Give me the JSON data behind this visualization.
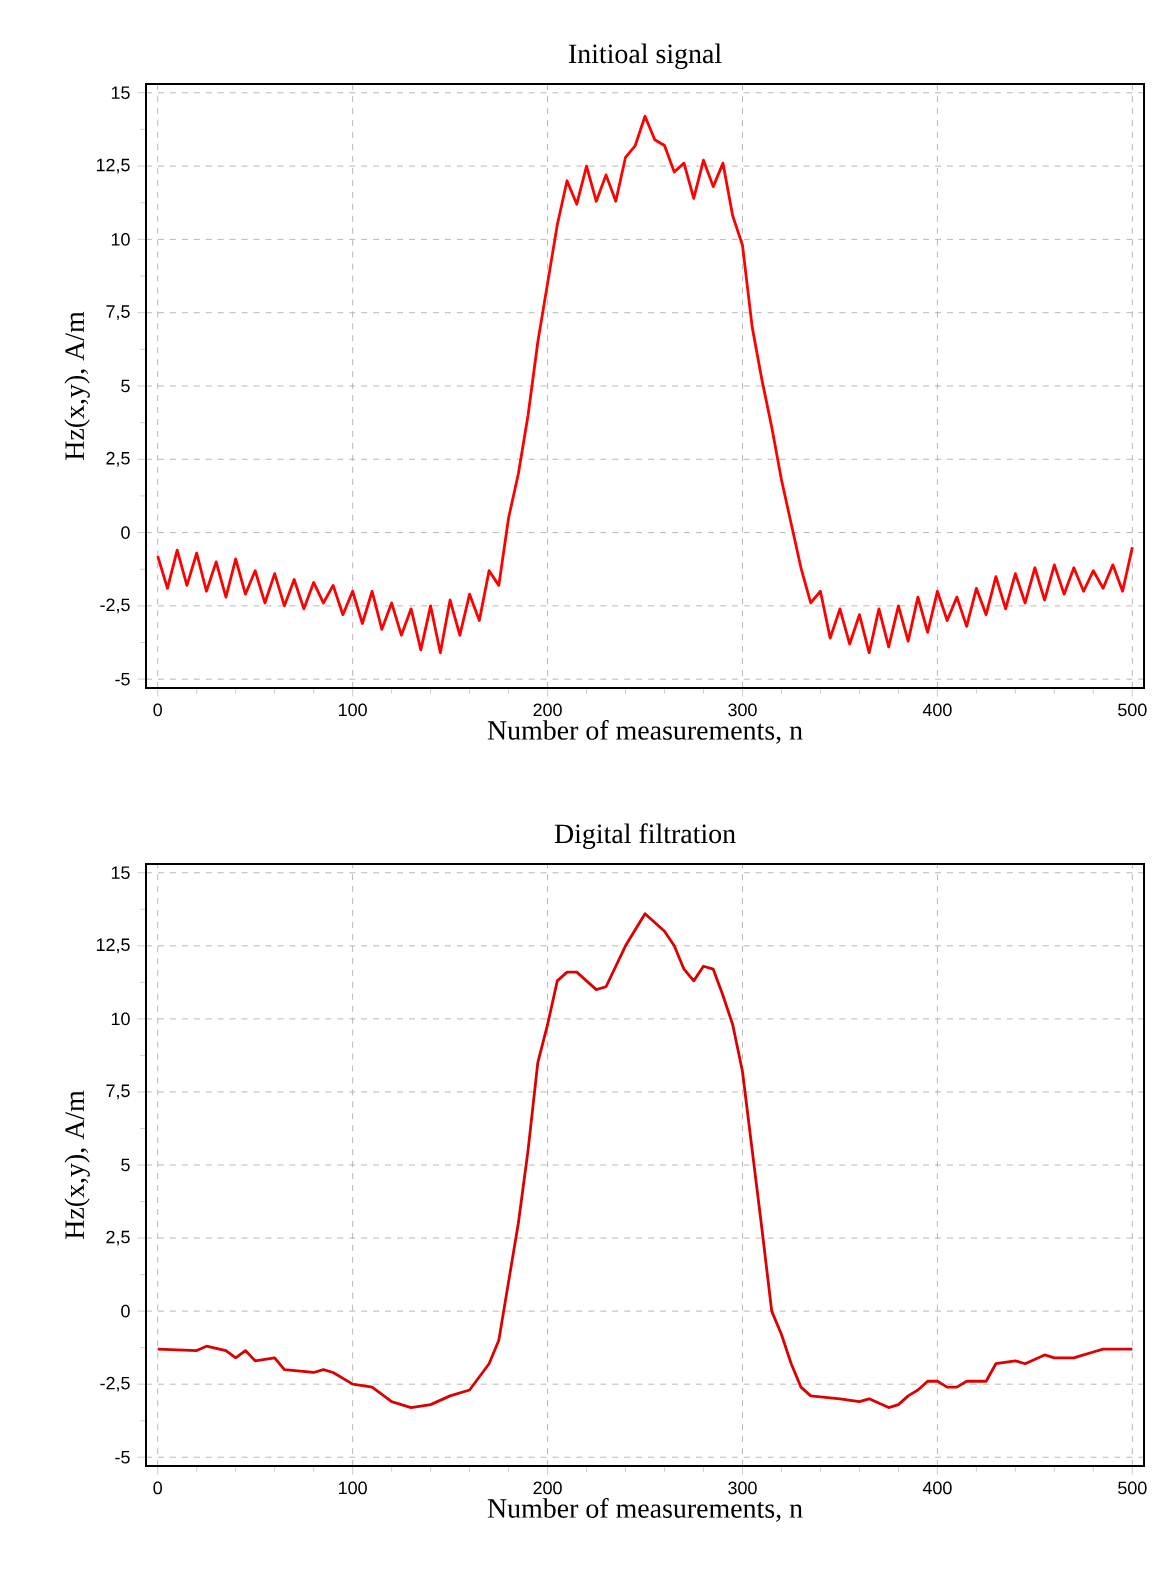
{
  "chart_data": [
    {
      "type": "line",
      "title": "Initioal signal",
      "xlabel": "Number of measurements, n",
      "ylabel": "Hz(x,y), A/m",
      "xlim": [
        -6,
        506
      ],
      "ylim": [
        -5.3,
        15.3
      ],
      "xticks": [
        0,
        100,
        200,
        300,
        400,
        500
      ],
      "yticks": [
        -5,
        {
          "value": -2.5,
          "label": "-2,5"
        },
        0,
        {
          "value": 2.5,
          "label": "2,5"
        },
        5,
        {
          "value": 7.5,
          "label": "7,5"
        },
        10,
        {
          "value": 12.5,
          "label": "12,5"
        },
        15
      ],
      "grid": true,
      "color": "#ff0000",
      "x": [
        0,
        5,
        10,
        15,
        20,
        25,
        30,
        35,
        40,
        45,
        50,
        55,
        60,
        65,
        70,
        75,
        80,
        85,
        90,
        95,
        100,
        105,
        110,
        115,
        120,
        125,
        130,
        135,
        140,
        145,
        150,
        155,
        160,
        165,
        170,
        175,
        180,
        185,
        190,
        195,
        200,
        205,
        210,
        215,
        220,
        225,
        230,
        235,
        240,
        245,
        250,
        255,
        260,
        265,
        270,
        275,
        280,
        285,
        290,
        295,
        300,
        305,
        310,
        315,
        320,
        325,
        330,
        335,
        340,
        345,
        350,
        355,
        360,
        365,
        370,
        375,
        380,
        385,
        390,
        395,
        400,
        405,
        410,
        415,
        420,
        425,
        430,
        435,
        440,
        445,
        450,
        455,
        460,
        465,
        470,
        475,
        480,
        485,
        490,
        495,
        500
      ],
      "values": [
        -0.8,
        -1.9,
        -0.6,
        -1.8,
        -0.7,
        -2.0,
        -1.0,
        -2.2,
        -0.9,
        -2.1,
        -1.3,
        -2.4,
        -1.4,
        -2.5,
        -1.6,
        -2.6,
        -1.7,
        -2.4,
        -1.8,
        -2.8,
        -2.0,
        -3.1,
        -2.0,
        -3.3,
        -2.4,
        -3.5,
        -2.6,
        -4.0,
        -2.5,
        -4.1,
        -2.3,
        -3.5,
        -2.1,
        -3.0,
        -1.3,
        -1.8,
        0.5,
        2.0,
        4.0,
        6.5,
        8.5,
        10.5,
        12.0,
        11.2,
        12.5,
        11.3,
        12.2,
        11.3,
        12.8,
        13.2,
        14.2,
        13.4,
        13.2,
        12.3,
        12.6,
        11.4,
        12.7,
        11.8,
        12.6,
        10.8,
        9.8,
        7.0,
        5.2,
        3.6,
        1.8,
        0.3,
        -1.2,
        -2.4,
        -2.0,
        -3.6,
        -2.6,
        -3.8,
        -2.8,
        -4.1,
        -2.6,
        -3.9,
        -2.5,
        -3.7,
        -2.2,
        -3.4,
        -2.0,
        -3.0,
        -2.2,
        -3.2,
        -1.9,
        -2.8,
        -1.5,
        -2.6,
        -1.4,
        -2.4,
        -1.2,
        -2.3,
        -1.1,
        -2.1,
        -1.2,
        -2.0,
        -1.3,
        -1.9,
        -1.1,
        -2.0,
        -0.5
      ]
    },
    {
      "type": "line",
      "title": "Digital filtration",
      "xlabel": "Number of measurements, n",
      "ylabel": "Hz(x,y), A/m",
      "xlim": [
        -6,
        506
      ],
      "ylim": [
        -5.3,
        15.3
      ],
      "xticks": [
        0,
        100,
        200,
        300,
        400,
        500
      ],
      "yticks": [
        -5,
        {
          "value": -2.5,
          "label": "-2,5"
        },
        0,
        {
          "value": 2.5,
          "label": "2,5"
        },
        5,
        {
          "value": 7.5,
          "label": "7,5"
        },
        10,
        {
          "value": 12.5,
          "label": "12,5"
        },
        15
      ],
      "grid": true,
      "color": "#dd0000",
      "x": [
        0,
        20,
        25,
        35,
        40,
        45,
        50,
        60,
        65,
        80,
        85,
        90,
        100,
        110,
        120,
        130,
        140,
        150,
        160,
        170,
        175,
        180,
        185,
        190,
        195,
        200,
        205,
        210,
        215,
        220,
        225,
        230,
        240,
        250,
        260,
        265,
        270,
        275,
        280,
        285,
        290,
        295,
        300,
        305,
        310,
        315,
        320,
        325,
        330,
        335,
        350,
        360,
        365,
        375,
        380,
        385,
        390,
        395,
        400,
        405,
        410,
        415,
        425,
        430,
        440,
        445,
        455,
        460,
        470,
        475,
        480,
        485,
        500
      ],
      "values": [
        -1.3,
        -1.35,
        -1.2,
        -1.35,
        -1.6,
        -1.35,
        -1.7,
        -1.6,
        -2.0,
        -2.1,
        -2.0,
        -2.1,
        -2.5,
        -2.6,
        -3.1,
        -3.3,
        -3.2,
        -2.9,
        -2.7,
        -1.8,
        -1.0,
        1.0,
        3.0,
        5.5,
        8.5,
        9.8,
        11.3,
        11.6,
        11.6,
        11.3,
        11.0,
        11.1,
        12.5,
        13.6,
        13.0,
        12.5,
        11.7,
        11.3,
        11.8,
        11.7,
        10.8,
        9.8,
        8.2,
        5.5,
        2.8,
        0.0,
        -0.8,
        -1.8,
        -2.6,
        -2.9,
        -3.0,
        -3.1,
        -3.0,
        -3.3,
        -3.2,
        -2.9,
        -2.7,
        -2.4,
        -2.4,
        -2.6,
        -2.6,
        -2.4,
        -2.4,
        -1.8,
        -1.7,
        -1.8,
        -1.5,
        -1.6,
        -1.6,
        -1.5,
        -1.4,
        -1.3,
        -1.3
      ]
    }
  ]
}
